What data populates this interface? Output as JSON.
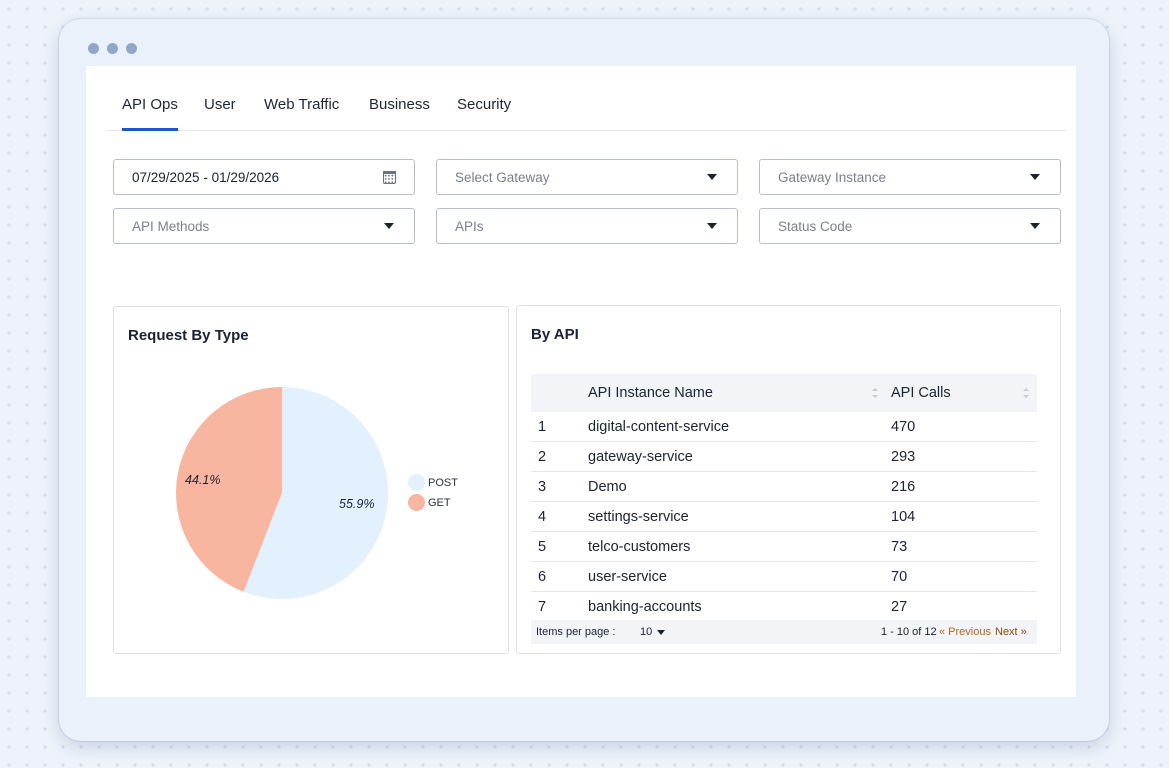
{
  "tabs": [
    "API Ops",
    "User",
    "Web Traffic",
    "Business",
    "Security"
  ],
  "filters": {
    "date_range": "07/29/2025 - 01/29/2026",
    "gateway": "Select Gateway",
    "gateway_instance": "Gateway Instance",
    "api_methods": "API Methods",
    "apis": "APIs",
    "status_code": "Status Code"
  },
  "request_by_type": {
    "title": "Request By Type",
    "labels": {
      "post": "55.9%",
      "get": "44.1%"
    },
    "legend": {
      "post": "POST",
      "get": "GET"
    }
  },
  "chart_data": {
    "type": "pie",
    "title": "Request By Type",
    "categories": [
      "POST",
      "GET"
    ],
    "values": [
      55.9,
      44.1
    ],
    "colors": [
      "#e3f0fd",
      "#f8b5a0"
    ],
    "legend_position": "right"
  },
  "by_api": {
    "title": "By API",
    "columns": {
      "name": "API Instance Name",
      "calls": "API Calls"
    },
    "rows": [
      {
        "idx": "1",
        "name": "digital-content-service",
        "calls": "470"
      },
      {
        "idx": "2",
        "name": "gateway-service",
        "calls": "293"
      },
      {
        "idx": "3",
        "name": "Demo",
        "calls": "216"
      },
      {
        "idx": "4",
        "name": "settings-service",
        "calls": "104"
      },
      {
        "idx": "5",
        "name": "telco-customers",
        "calls": "73"
      },
      {
        "idx": "6",
        "name": "user-service",
        "calls": "70"
      },
      {
        "idx": "7",
        "name": "banking-accounts",
        "calls": "27"
      }
    ],
    "pagination": {
      "items_per_page_label": "Items per page :",
      "items_per_page": "10",
      "range": "1 - 10 of 12",
      "prev": "« Previous",
      "next": "Next »"
    }
  }
}
